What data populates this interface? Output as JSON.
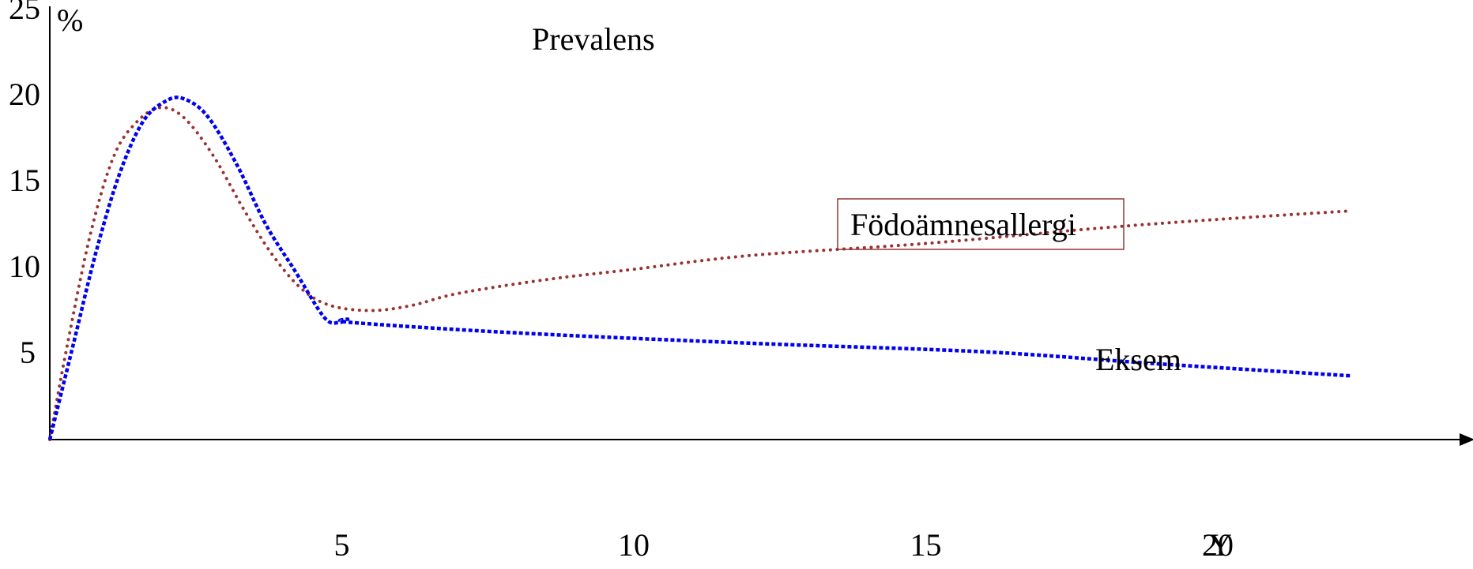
{
  "chart_data": {
    "type": "line",
    "title": "Prevalens",
    "ylabel": "%",
    "xlabel": "Y",
    "xlim": [
      0,
      22.5
    ],
    "ylim": [
      0,
      25
    ],
    "xticks": [
      5,
      10,
      15,
      20
    ],
    "yticks": [
      5,
      10,
      15,
      20,
      25
    ],
    "grid": false,
    "series": [
      {
        "name": "Födoämnesallergi",
        "color": "#993333",
        "style": "dotted",
        "points": [
          {
            "x": 0,
            "y": 0
          },
          {
            "x": 0.3,
            "y": 5.5
          },
          {
            "x": 0.7,
            "y": 12
          },
          {
            "x": 1.1,
            "y": 16.5
          },
          {
            "x": 1.5,
            "y": 18.5
          },
          {
            "x": 1.9,
            "y": 19.3
          },
          {
            "x": 2.3,
            "y": 18.7
          },
          {
            "x": 2.8,
            "y": 16.5
          },
          {
            "x": 3.3,
            "y": 13.5
          },
          {
            "x": 3.8,
            "y": 10.8
          },
          {
            "x": 4.3,
            "y": 8.8
          },
          {
            "x": 4.8,
            "y": 7.8
          },
          {
            "x": 5.5,
            "y": 7.5
          },
          {
            "x": 6.2,
            "y": 7.8
          },
          {
            "x": 7,
            "y": 8.5
          },
          {
            "x": 8.5,
            "y": 9.3
          },
          {
            "x": 10,
            "y": 9.9
          },
          {
            "x": 12,
            "y": 10.7
          },
          {
            "x": 15,
            "y": 11.4
          },
          {
            "x": 18,
            "y": 12.3
          },
          {
            "x": 20,
            "y": 12.8
          },
          {
            "x": 22.3,
            "y": 13.3
          }
        ]
      },
      {
        "name": "Eksem",
        "color": "#0000ee",
        "style": "dotted",
        "points": [
          {
            "x": 0,
            "y": 0
          },
          {
            "x": 0.4,
            "y": 5.5
          },
          {
            "x": 0.8,
            "y": 11
          },
          {
            "x": 1.2,
            "y": 15.5
          },
          {
            "x": 1.6,
            "y": 18.5
          },
          {
            "x": 2.0,
            "y": 19.7
          },
          {
            "x": 2.3,
            "y": 19.8
          },
          {
            "x": 2.7,
            "y": 18.8
          },
          {
            "x": 3.2,
            "y": 16
          },
          {
            "x": 3.7,
            "y": 12.5
          },
          {
            "x": 4.2,
            "y": 9.8
          },
          {
            "x": 4.7,
            "y": 7.1
          },
          {
            "x": 4.95,
            "y": 6.8
          },
          {
            "x": 5.1,
            "y": 7.0
          },
          {
            "x": 5.2,
            "y": 6.8
          },
          {
            "x": 8,
            "y": 6.2
          },
          {
            "x": 12,
            "y": 5.6
          },
          {
            "x": 16,
            "y": 5.1
          },
          {
            "x": 19,
            "y": 4.4
          },
          {
            "x": 22.3,
            "y": 3.7
          }
        ]
      }
    ]
  }
}
